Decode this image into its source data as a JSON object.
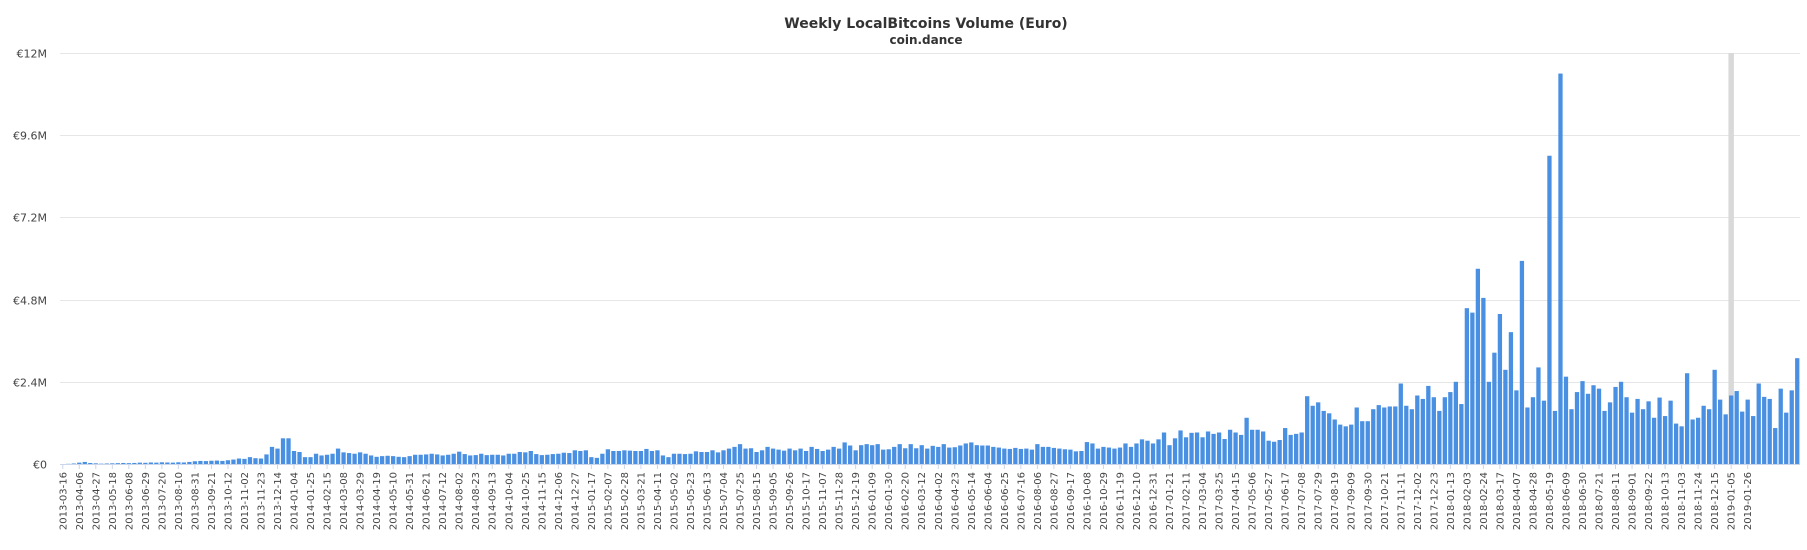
{
  "chart_data": {
    "type": "bar",
    "title": "Weekly LocalBitcoins Volume (Euro)",
    "subtitle": "coin.dance",
    "color": "#4a90e2",
    "highlight_color": "#d9d9d9",
    "highlight_category": "2019-01-05",
    "ylim": [
      0,
      12000000
    ],
    "y_ticks": [
      {
        "value": 0,
        "label": "€0"
      },
      {
        "value": 2400000,
        "label": "€2.4M"
      },
      {
        "value": 4800000,
        "label": "€4.8M"
      },
      {
        "value": 7200000,
        "label": "€7.2M"
      },
      {
        "value": 9600000,
        "label": "€9.6M"
      },
      {
        "value": 12000000,
        "label": "€12M"
      }
    ],
    "first_week": "2013-03-16",
    "x_labels": [
      "2013-03-16",
      "2013-04-06",
      "2013-04-27",
      "2013-05-18",
      "2013-06-08",
      "2013-06-29",
      "2013-07-20",
      "2013-08-10",
      "2013-08-31",
      "2013-09-21",
      "2013-10-12",
      "2013-11-02",
      "2013-11-23",
      "2013-12-14",
      "2014-01-04",
      "2014-01-25",
      "2014-02-15",
      "2014-03-08",
      "2014-03-29",
      "2014-04-19",
      "2014-05-10",
      "2014-05-31",
      "2014-06-21",
      "2014-07-12",
      "2014-08-02",
      "2014-08-23",
      "2014-09-13",
      "2014-10-04",
      "2014-10-25",
      "2014-11-15",
      "2014-12-06",
      "2014-12-27",
      "2015-01-17",
      "2015-02-07",
      "2015-02-28",
      "2015-03-21",
      "2015-04-11",
      "2015-05-02",
      "2015-05-23",
      "2015-06-13",
      "2015-07-04",
      "2015-07-25",
      "2015-08-15",
      "2015-09-05",
      "2015-09-26",
      "2015-10-17",
      "2015-11-07",
      "2015-11-28",
      "2015-12-19",
      "2016-01-09",
      "2016-01-30",
      "2016-02-20",
      "2016-03-12",
      "2016-04-02",
      "2016-04-23",
      "2016-05-14",
      "2016-06-04",
      "2016-06-25",
      "2016-07-16",
      "2016-08-06",
      "2016-08-27",
      "2016-09-17",
      "2016-10-08",
      "2016-10-29",
      "2016-11-19",
      "2016-12-10",
      "2016-12-31",
      "2017-01-21",
      "2017-02-11",
      "2017-03-04",
      "2017-03-25",
      "2017-04-15",
      "2017-05-06",
      "2017-05-27",
      "2017-06-17",
      "2017-07-08",
      "2017-07-29",
      "2017-08-19",
      "2017-09-09",
      "2017-09-30",
      "2017-10-21",
      "2017-11-11",
      "2017-12-02",
      "2017-12-23",
      "2018-01-13",
      "2018-02-03",
      "2018-02-24",
      "2018-03-17",
      "2018-04-07",
      "2018-04-28",
      "2018-05-19",
      "2018-06-09",
      "2018-06-30",
      "2018-07-21",
      "2018-08-11",
      "2018-09-01",
      "2018-09-22",
      "2018-10-13",
      "2018-11-03",
      "2018-11-24",
      "2018-12-15",
      "2019-01-05",
      "2019-01-26"
    ],
    "values": [
      0,
      5000,
      15000,
      40000,
      60000,
      30000,
      20000,
      10000,
      15000,
      20000,
      25000,
      30000,
      25000,
      30000,
      40000,
      35000,
      45000,
      40000,
      50000,
      45000,
      40000,
      50000,
      45000,
      60000,
      80000,
      90000,
      85000,
      95000,
      100000,
      90000,
      110000,
      130000,
      160000,
      150000,
      200000,
      170000,
      160000,
      280000,
      500000,
      450000,
      750000,
      750000,
      380000,
      350000,
      200000,
      200000,
      300000,
      250000,
      270000,
      300000,
      450000,
      340000,
      320000,
      300000,
      340000,
      300000,
      250000,
      210000,
      230000,
      240000,
      230000,
      210000,
      200000,
      230000,
      270000,
      270000,
      280000,
      300000,
      280000,
      250000,
      270000,
      300000,
      360000,
      290000,
      250000,
      260000,
      300000,
      260000,
      270000,
      270000,
      250000,
      300000,
      300000,
      350000,
      340000,
      380000,
      290000,
      260000,
      270000,
      290000,
      300000,
      330000,
      320000,
      400000,
      380000,
      400000,
      200000,
      180000,
      300000,
      430000,
      380000,
      380000,
      400000,
      390000,
      380000,
      380000,
      440000,
      380000,
      400000,
      250000,
      200000,
      300000,
      300000,
      290000,
      300000,
      370000,
      350000,
      350000,
      400000,
      340000,
      400000,
      450000,
      500000,
      580000,
      450000,
      460000,
      350000,
      400000,
      500000,
      450000,
      420000,
      390000,
      450000,
      400000,
      450000,
      380000,
      500000,
      440000,
      380000,
      420000,
      500000,
      450000,
      630000,
      540000,
      400000,
      550000,
      580000,
      550000,
      580000,
      420000,
      430000,
      500000,
      580000,
      460000,
      580000,
      460000,
      550000,
      450000,
      530000,
      500000,
      580000,
      480000,
      490000,
      540000,
      600000,
      630000,
      550000,
      540000,
      540000,
      500000,
      480000,
      450000,
      440000,
      470000,
      440000,
      450000,
      420000,
      580000,
      500000,
      500000,
      470000,
      450000,
      430000,
      420000,
      370000,
      380000,
      640000,
      600000,
      450000,
      500000,
      480000,
      450000,
      480000,
      600000,
      500000,
      600000,
      720000,
      680000,
      600000,
      720000,
      920000,
      550000,
      750000,
      980000,
      780000,
      910000,
      920000,
      780000,
      950000,
      880000,
      920000,
      730000,
      1000000,
      920000,
      850000,
      1350000,
      1000000,
      1000000,
      950000,
      680000,
      650000,
      700000,
      1050000,
      850000,
      880000,
      920000,
      1980000,
      1700000,
      1800000,
      1550000,
      1480000,
      1300000,
      1150000,
      1100000,
      1150000,
      1650000,
      1250000,
      1250000,
      1600000,
      1720000,
      1650000,
      1680000,
      1680000,
      2350000,
      1700000,
      1600000,
      2000000,
      1900000,
      2280000,
      1950000,
      1550000,
      1950000,
      2100000,
      2400000,
      1750000,
      4550000,
      4420000,
      5700000,
      4850000,
      2400000,
      3250000,
      4380000,
      2750000,
      3850000,
      2150000,
      5930000,
      1650000,
      1950000,
      2820000,
      1850000,
      9000000,
      1550000,
      11400000,
      2550000,
      1600000,
      2100000,
      2420000,
      2050000,
      2300000,
      2200000,
      1550000,
      1800000,
      2250000,
      2400000,
      1950000,
      1500000,
      1900000,
      1600000,
      1830000,
      1350000,
      1940000,
      1400000,
      1850000,
      1180000,
      1100000,
      2650000,
      1300000,
      1350000,
      1700000,
      1600000,
      2750000,
      1880000,
      1450000,
      2000000,
      2130000,
      1530000,
      1880000,
      1400000,
      2350000,
      1960000,
      1900000,
      1050000,
      2200000,
      1500000,
      2150000,
      3090000
    ]
  }
}
